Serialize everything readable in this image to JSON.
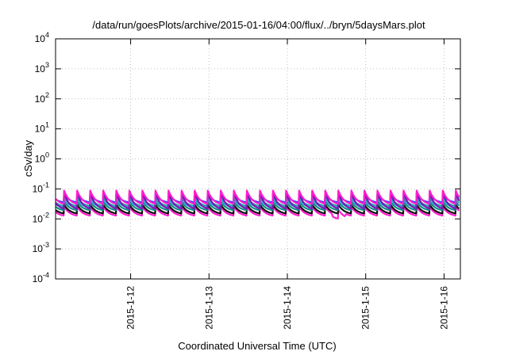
{
  "chart_data": {
    "type": "line",
    "title": "/data/run/goesPlots/archive/2015-01-16/04:00/flux/../bryn/5daysMars.plot",
    "xlabel": "Coordinated Universal Time (UTC)",
    "ylabel": "cSv/day",
    "yscale": "log",
    "ylim": [
      0.0001,
      10000
    ],
    "yticks": [
      {
        "base": "10",
        "exp": "-4",
        "value": 0.0001
      },
      {
        "base": "10",
        "exp": "-3",
        "value": 0.001
      },
      {
        "base": "10",
        "exp": "-2",
        "value": 0.01
      },
      {
        "base": "10",
        "exp": "-1",
        "value": 0.1
      },
      {
        "base": "10",
        "exp": "0",
        "value": 1
      },
      {
        "base": "10",
        "exp": "1",
        "value": 10
      },
      {
        "base": "10",
        "exp": "2",
        "value": 100
      },
      {
        "base": "10",
        "exp": "3",
        "value": 1000
      },
      {
        "base": "10",
        "exp": "4",
        "value": 10000
      }
    ],
    "xlim": [
      "2015-01-11 01:00",
      "2015-01-16 05:00"
    ],
    "xticks": [
      "2015-1-12",
      "2015-1-13",
      "2015-1-14",
      "2015-1-15",
      "2015-1-16"
    ],
    "grid": true,
    "sawtooth_cycles_per_day": 6,
    "series": [
      {
        "color": "#ff1dce",
        "peak": 0.088,
        "trough": 0.028
      },
      {
        "color": "#7a1bb3",
        "peak": 0.072,
        "trough": 0.019
      },
      {
        "color": "#1f3fff",
        "peak": 0.066,
        "trough": 0.033
      },
      {
        "color": "#2aa7b0",
        "peak": 0.052,
        "trough": 0.025
      },
      {
        "color": "#3aa6e0",
        "peak": 0.046,
        "trough": 0.022
      },
      {
        "color": "#0d8f86",
        "peak": 0.038,
        "trough": 0.018
      },
      {
        "color": "#111111",
        "peak": 0.03,
        "trough": 0.014
      },
      {
        "color": "#ff1dce",
        "peak": 0.026,
        "trough": 0.0118
      }
    ]
  }
}
